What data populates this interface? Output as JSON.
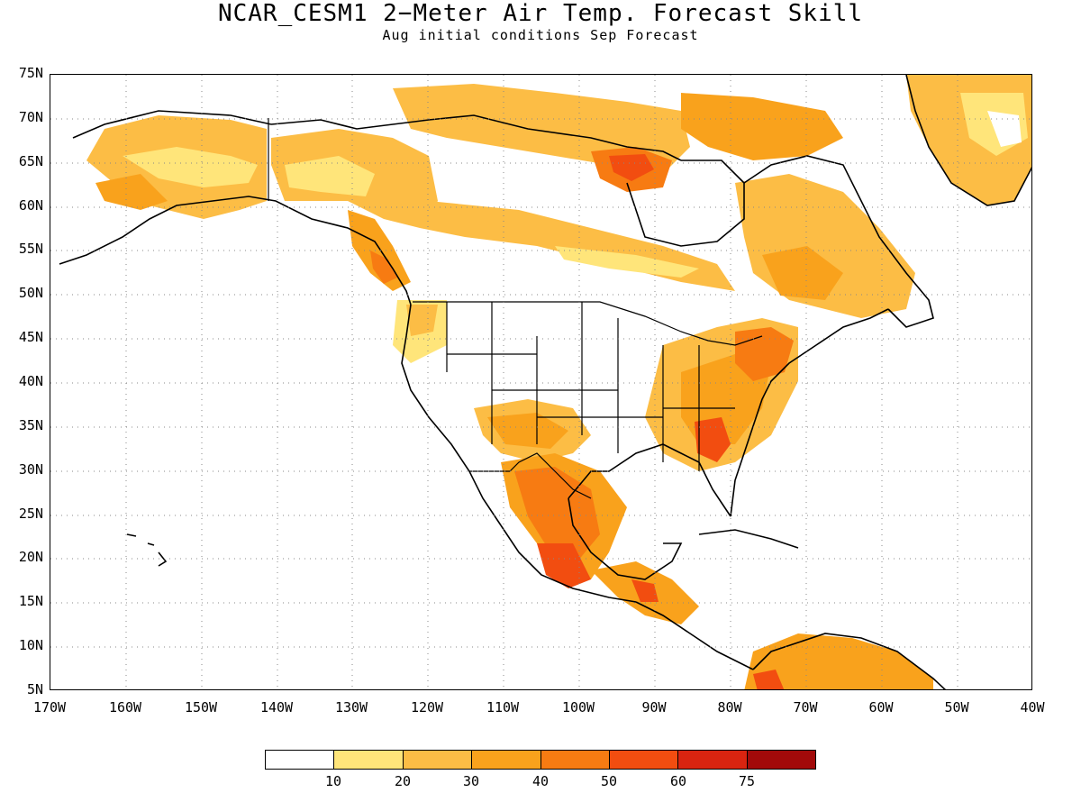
{
  "title": "NCAR_CESM1 2−Meter Air Temp. Forecast Skill",
  "subtitle": "Aug initial conditions  Sep Forecast",
  "lat_labels": [
    "75N",
    "70N",
    "65N",
    "60N",
    "55N",
    "50N",
    "45N",
    "40N",
    "35N",
    "30N",
    "25N",
    "20N",
    "15N",
    "10N",
    "5N"
  ],
  "lon_labels": [
    "170W",
    "160W",
    "150W",
    "140W",
    "130W",
    "120W",
    "110W",
    "100W",
    "90W",
    "80W",
    "70W",
    "60W",
    "50W",
    "40W"
  ],
  "colorbar": {
    "colors": [
      "#ffffff",
      "#ffe57a",
      "#fcbd45",
      "#f9a21c",
      "#f77b12",
      "#f24d10",
      "#d92410",
      "#a20a0a"
    ],
    "labels": [
      "10",
      "20",
      "30",
      "40",
      "50",
      "60",
      "75"
    ]
  },
  "map": {
    "lon_range": [
      -170,
      -40
    ],
    "lat_range": [
      5,
      75
    ],
    "grid": "dotted",
    "variable": "2-meter air temperature forecast skill"
  }
}
